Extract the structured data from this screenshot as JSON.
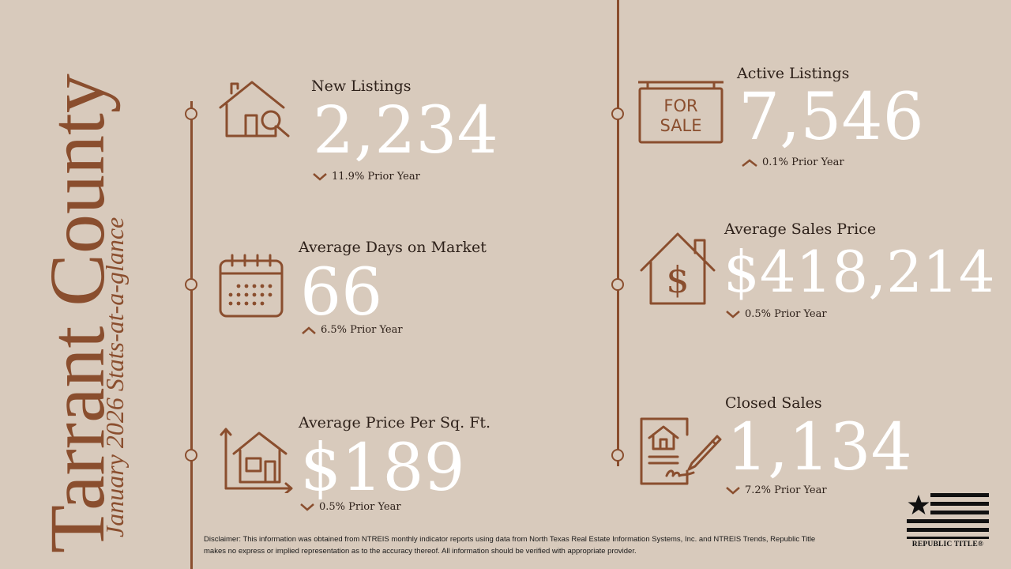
{
  "title": {
    "county": "Tarrant County",
    "subtitle": "January 2026 Stats-at-a-glance"
  },
  "stats": {
    "new_listings": {
      "label": "New Listings",
      "value": "2,234",
      "change": "11.9% Prior Year",
      "direction": "down",
      "icon": "house-search-icon"
    },
    "days_on_market": {
      "label": "Average Days on Market",
      "value": "66",
      "change": "6.5% Prior Year",
      "direction": "up",
      "icon": "calendar-icon"
    },
    "price_per_sqft": {
      "label": "Average Price Per Sq. Ft.",
      "value": "$189",
      "change": "0.5% Prior Year",
      "direction": "down",
      "icon": "house-dimensions-icon"
    },
    "active_listings": {
      "label": "Active Listings",
      "value": "7,546",
      "change": "0.1% Prior Year",
      "direction": "up",
      "icon": "for-sale-sign-icon",
      "sign_text_1": "FOR",
      "sign_text_2": "SALE"
    },
    "avg_sales_price": {
      "label": "Average Sales Price",
      "value": "$418,214",
      "change": "0.5% Prior Year",
      "direction": "down",
      "icon": "house-dollar-icon"
    },
    "closed_sales": {
      "label": "Closed Sales",
      "value": "1,134",
      "change": "7.2% Prior Year",
      "direction": "down",
      "icon": "signed-contract-icon"
    }
  },
  "disclaimer": "Disclaimer: This information was obtained from NTREIS monthly indicator reports using data from North Texas Real Estate Information Systems, Inc. and NTREIS Trends, Republic Title makes no express or implied representation as to the accuracy thereof. All information should be verified with appropriate provider.",
  "logo": {
    "text": "REPUBLIC TITLE®",
    "icon": "star-flag-icon"
  },
  "colors": {
    "background": "#d8cabc",
    "accent": "#8a4e2e",
    "value_text": "#ffffff",
    "label_text": "#2e211a"
  }
}
